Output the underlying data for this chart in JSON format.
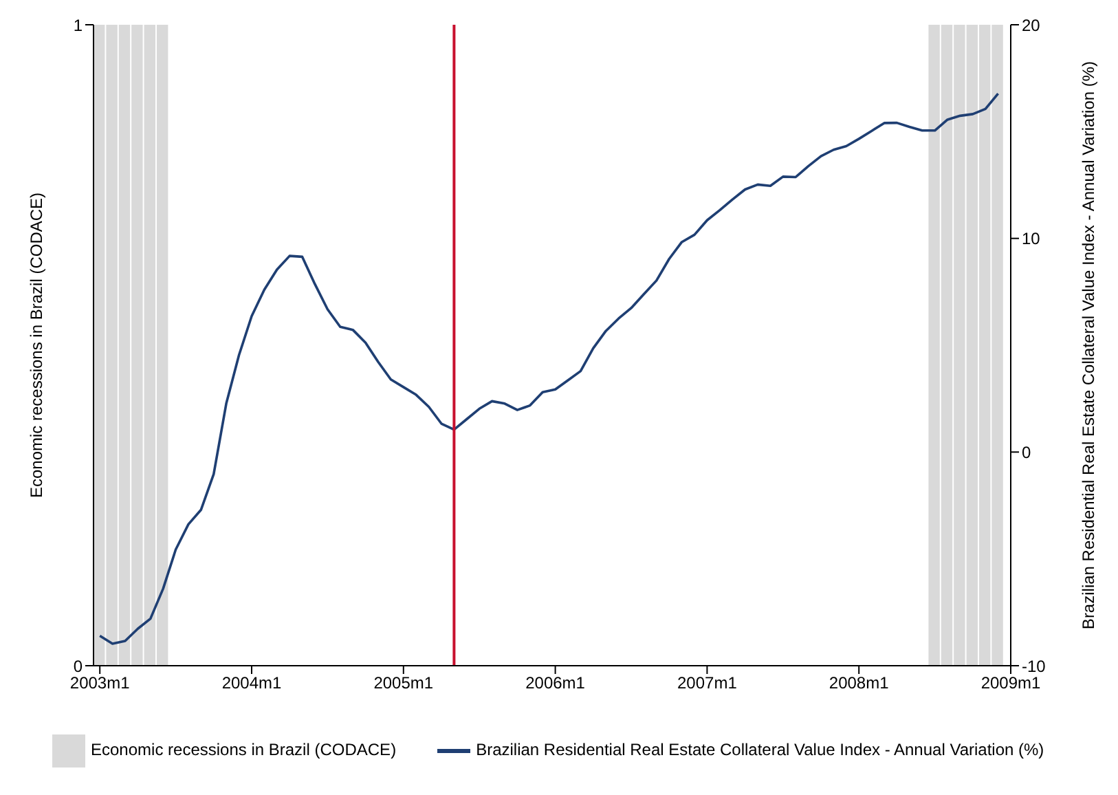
{
  "chart_data": {
    "type": "line",
    "ylabel": "Economic recessions in Brazil (CODACE)",
    "y2label": "Brazilian Residential Real Estate Collateral Value Index - Annual Variation (%)",
    "x": [
      "2003-01",
      "2003-02",
      "2003-03",
      "2003-04",
      "2003-05",
      "2003-06",
      "2003-07",
      "2003-08",
      "2003-09",
      "2003-10",
      "2003-11",
      "2003-12",
      "2004-01",
      "2004-02",
      "2004-03",
      "2004-04",
      "2004-05",
      "2004-06",
      "2004-07",
      "2004-08",
      "2004-09",
      "2004-10",
      "2004-11",
      "2004-12",
      "2005-01",
      "2005-02",
      "2005-03",
      "2005-04",
      "2005-05",
      "2005-06",
      "2005-07",
      "2005-08",
      "2005-09",
      "2005-10",
      "2005-11",
      "2005-12",
      "2006-01",
      "2006-02",
      "2006-03",
      "2006-04",
      "2006-05",
      "2006-06",
      "2006-07",
      "2006-08",
      "2006-09",
      "2006-10",
      "2006-11",
      "2006-12",
      "2007-01",
      "2007-02",
      "2007-03",
      "2007-04",
      "2007-05",
      "2007-06",
      "2007-07",
      "2007-08",
      "2007-09",
      "2007-10",
      "2007-11",
      "2007-12",
      "2008-01",
      "2008-02",
      "2008-03",
      "2008-04",
      "2008-05",
      "2008-06",
      "2008-07",
      "2008-08",
      "2008-09",
      "2008-10",
      "2008-11",
      "2008-12"
    ],
    "series": [
      {
        "name": "Economic recessions in Brazil (CODACE)",
        "type": "bar",
        "axis": "y",
        "color": "#d9d9d9",
        "values": [
          1,
          1,
          1,
          1,
          1,
          1,
          null,
          null,
          null,
          null,
          null,
          null,
          null,
          null,
          null,
          null,
          null,
          null,
          null,
          null,
          null,
          null,
          null,
          null,
          null,
          null,
          null,
          null,
          null,
          null,
          null,
          null,
          null,
          null,
          null,
          null,
          null,
          null,
          null,
          null,
          null,
          null,
          null,
          null,
          null,
          null,
          null,
          null,
          null,
          null,
          null,
          null,
          null,
          null,
          null,
          null,
          null,
          null,
          null,
          null,
          null,
          null,
          null,
          null,
          null,
          null,
          1,
          1,
          1,
          1,
          1,
          1
        ]
      },
      {
        "name": "Brazilian Residential Real Estate Collateral Value Index - Annual Variation (%)",
        "axis": "y2",
        "color": "#1f3f73",
        "values": [
          -8.6,
          -8.97,
          -8.84,
          -8.27,
          -7.8,
          -6.4,
          -4.56,
          -3.38,
          -2.7,
          -1.03,
          2.29,
          4.54,
          6.36,
          7.6,
          8.54,
          9.18,
          9.14,
          7.86,
          6.68,
          5.86,
          5.72,
          5.12,
          4.22,
          3.4,
          3.04,
          2.68,
          2.12,
          1.33,
          1.05,
          1.54,
          2.03,
          2.38,
          2.27,
          1.97,
          2.18,
          2.8,
          2.93,
          3.36,
          3.79,
          4.86,
          5.67,
          6.25,
          6.74,
          7.39,
          8.03,
          9.04,
          9.83,
          10.17,
          10.85,
          11.32,
          11.82,
          12.29,
          12.52,
          12.46,
          12.89,
          12.87,
          13.38,
          13.85,
          14.15,
          14.32,
          14.66,
          15.03,
          15.4,
          15.41,
          15.22,
          15.05,
          15.05,
          15.56,
          15.74,
          15.82,
          16.06,
          16.78
        ]
      }
    ],
    "xlim": [
      "2002-12-16",
      "2009-01"
    ],
    "xticks": [
      {
        "value": "2003-01",
        "label": "2003m1"
      },
      {
        "value": "2004-01",
        "label": "2004m1"
      },
      {
        "value": "2005-01",
        "label": "2005m1"
      },
      {
        "value": "2006-01",
        "label": "2006m1"
      },
      {
        "value": "2007-01",
        "label": "2007m1"
      },
      {
        "value": "2008-01",
        "label": "2008m1"
      },
      {
        "value": "2009-01",
        "label": "2009m1"
      }
    ],
    "ylim": [
      0,
      1
    ],
    "yticks": [
      0,
      1
    ],
    "y2lim": [
      -10,
      20
    ],
    "y2ticks": [
      -10,
      0,
      10,
      20
    ],
    "ref_lines": [
      {
        "axis": "x",
        "value": "2005-05",
        "color": "#c8102e"
      }
    ],
    "grid": false,
    "legend": "bottom",
    "marker": "none",
    "line_style": "solid"
  }
}
